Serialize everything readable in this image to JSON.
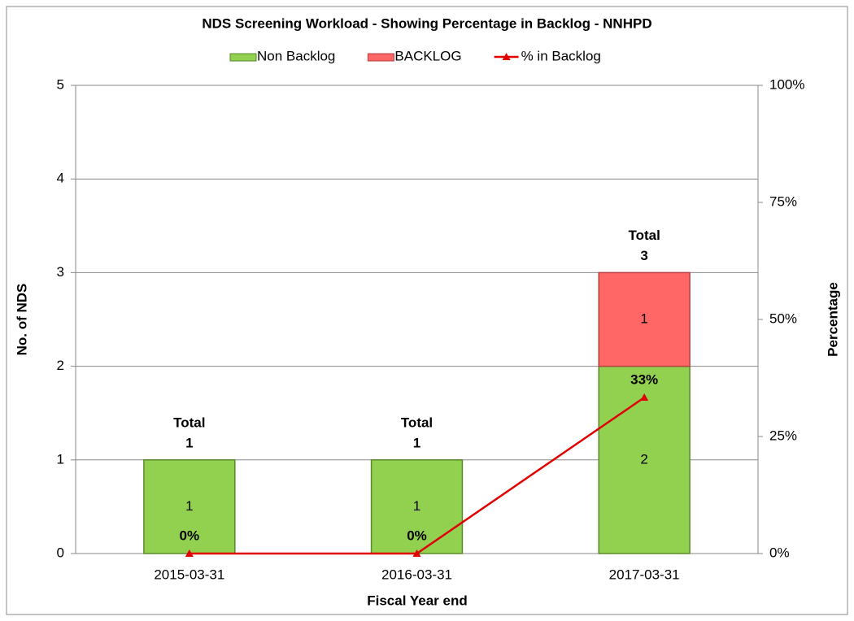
{
  "chart_data": {
    "type": "bar",
    "title": "NDS Screening Workload - Showing Percentage in Backlog - NNHPD",
    "categories": [
      "2015-03-31",
      "2016-03-31",
      "2017-03-31"
    ],
    "series": [
      {
        "name": "Non Backlog",
        "color": "#92d050",
        "values": [
          1,
          1,
          2
        ]
      },
      {
        "name": "BACKLOG",
        "color": "#ff6666",
        "values": [
          null,
          null,
          1
        ]
      },
      {
        "name": "% in Backlog",
        "type": "line",
        "axis": "y2",
        "color": "#e00000",
        "values": [
          0,
          0,
          33.33
        ],
        "value_labels": [
          "0%",
          "0%",
          "33%"
        ]
      }
    ],
    "total_label": "Total",
    "totals": [
      1,
      1,
      3
    ],
    "ylim": [
      0,
      5
    ],
    "yticks": [
      0,
      1,
      2,
      3,
      4,
      5
    ],
    "y2lim": [
      0,
      100
    ],
    "y2ticks": [
      {
        "value": 0,
        "label": "0%"
      },
      {
        "value": 25,
        "label": "25%"
      },
      {
        "value": 50,
        "label": "50%"
      },
      {
        "value": 75,
        "label": "75%"
      },
      {
        "value": 100,
        "label": "100%"
      }
    ],
    "ylabel": "No. of NDS",
    "y2label": "Percentage",
    "xlabel": "Fiscal Year end",
    "grid": true,
    "legend": "top"
  }
}
